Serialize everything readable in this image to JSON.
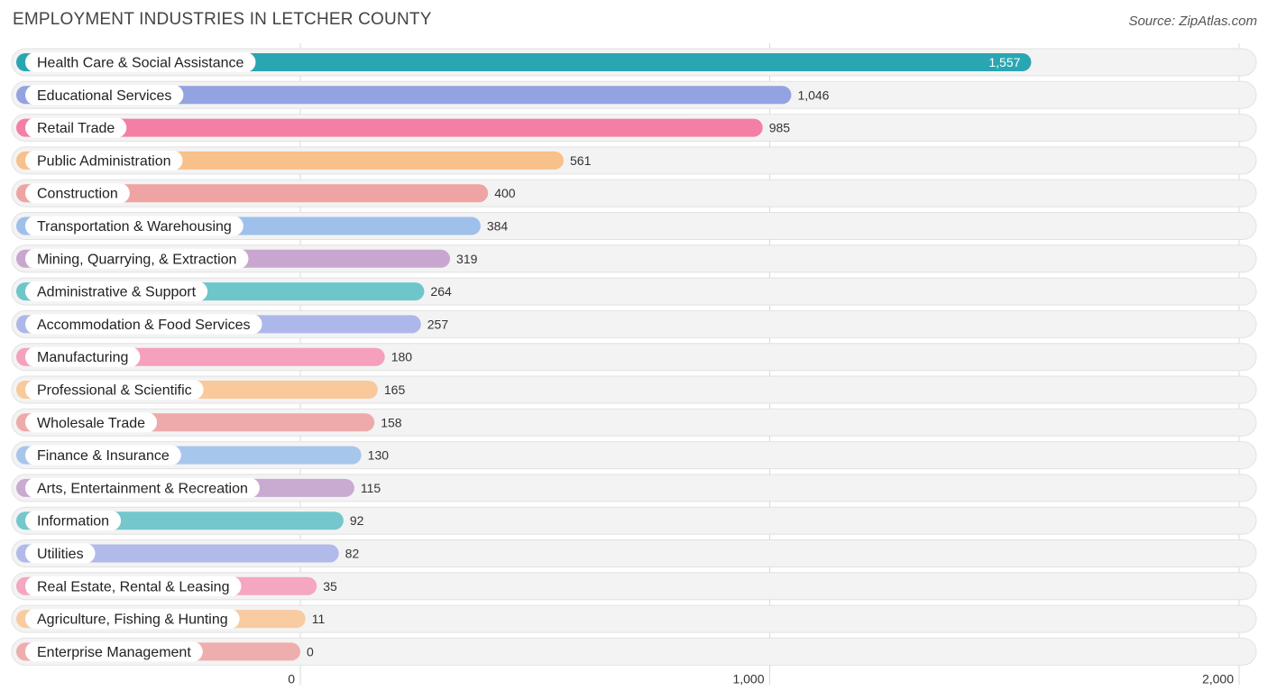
{
  "header": {
    "title": "EMPLOYMENT INDUSTRIES IN LETCHER COUNTY",
    "source": "Source: ZipAtlas.com"
  },
  "chart_data": {
    "type": "bar",
    "orientation": "horizontal",
    "title": "EMPLOYMENT INDUSTRIES IN LETCHER COUNTY",
    "xlabel": "",
    "ylabel": "",
    "xlim": [
      0,
      2000
    ],
    "ticks": [
      0,
      1000,
      2000
    ],
    "tick_labels": [
      "0",
      "1,000",
      "2,000"
    ],
    "grid": true,
    "categories": [
      "Health Care & Social Assistance",
      "Educational Services",
      "Retail Trade",
      "Public Administration",
      "Construction",
      "Transportation & Warehousing",
      "Mining, Quarrying, & Extraction",
      "Administrative & Support",
      "Accommodation & Food Services",
      "Manufacturing",
      "Professional & Scientific",
      "Wholesale Trade",
      "Finance & Insurance",
      "Arts, Entertainment & Recreation",
      "Information",
      "Utilities",
      "Real Estate, Rental & Leasing",
      "Agriculture, Fishing & Hunting",
      "Enterprise Management"
    ],
    "values": [
      1557,
      1046,
      985,
      561,
      400,
      384,
      319,
      264,
      257,
      180,
      165,
      158,
      130,
      115,
      92,
      82,
      35,
      11,
      0
    ],
    "value_labels": [
      "1,557",
      "1,046",
      "985",
      "561",
      "400",
      "384",
      "319",
      "264",
      "257",
      "180",
      "165",
      "158",
      "130",
      "115",
      "92",
      "82",
      "35",
      "11",
      "0"
    ],
    "colors": [
      "#2aa6b2",
      "#93a3e1",
      "#f47fa4",
      "#f8c08a",
      "#eda4a2",
      "#9ec0eb",
      "#c9a6cf",
      "#6ec6cb",
      "#aeb7ea",
      "#f5a0bc",
      "#f9c99b",
      "#eeaaaa",
      "#a7c6ec",
      "#c9aad1",
      "#74c7cc",
      "#b2baea",
      "#f5a6c1",
      "#f9cba0",
      "#efaeae"
    ]
  }
}
